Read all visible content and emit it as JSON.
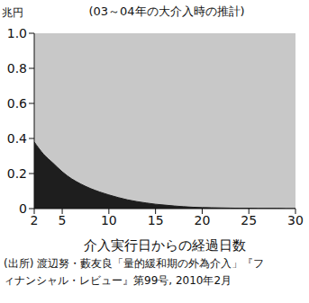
{
  "chart_data": {
    "type": "area",
    "title": "(03～04年の大介入時の推計)",
    "y_label": "兆円",
    "x_label": "介入実行日からの経過日数",
    "note": "(出所) 渡辺努・藪友良「量的緩和期の外為介入」『フィナンシャル・レビュー』第99号, 2010年2月",
    "x": [
      2,
      3,
      4,
      5,
      6,
      7,
      8,
      9,
      10,
      11,
      12,
      13,
      14,
      15,
      16,
      17,
      18,
      19,
      20,
      21,
      22,
      23,
      24,
      25,
      26,
      27,
      28,
      29,
      30
    ],
    "values": [
      0.38,
      0.31,
      0.26,
      0.21,
      0.17,
      0.14,
      0.115,
      0.095,
      0.078,
      0.063,
      0.05,
      0.04,
      0.032,
      0.025,
      0.02,
      0.015,
      0.011,
      0.008,
      0.006,
      0.005,
      0.004,
      0.003,
      0.002,
      0.002,
      0.001,
      0.001,
      0.001,
      0,
      0
    ],
    "color": "#1e1e1e",
    "xlim": [
      2,
      30
    ],
    "xticks": [
      2,
      5,
      10,
      15,
      20,
      25,
      30
    ],
    "ylim": [
      0,
      1
    ],
    "yticks": [
      0,
      0.2,
      0.4,
      0.6,
      0.8,
      {
        "value": 1,
        "label": "1.0"
      }
    ],
    "grid": false
  }
}
